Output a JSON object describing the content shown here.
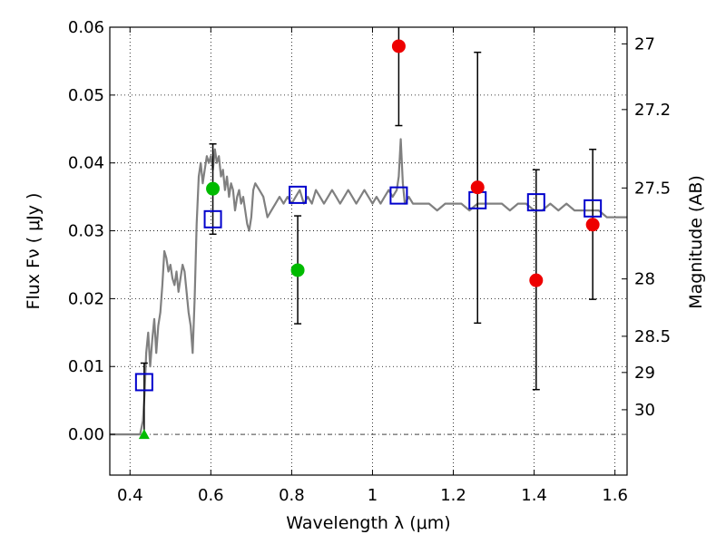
{
  "chart_data": {
    "type": "scatter",
    "title": "",
    "xlabel": "Wavelength  λ (μm)",
    "ylabel": "Flux  Fν  ( μJy )",
    "ylabel_right": "Magnitude (AB)",
    "xlim": [
      0.35,
      1.63
    ],
    "ylim": [
      -0.006,
      0.06
    ],
    "grid": true,
    "x_ticks": [
      0.4,
      0.6,
      0.8,
      1.0,
      1.2,
      1.4,
      1.6
    ],
    "x_tick_labels": [
      "0.4",
      "0.6",
      "0.8",
      "1",
      "1.2",
      "1.4",
      "1.6"
    ],
    "y_ticks": [
      0.0,
      0.01,
      0.02,
      0.03,
      0.04,
      0.05,
      0.06
    ],
    "y_tick_labels": [
      "0.00",
      "0.01",
      "0.02",
      "0.03",
      "0.04",
      "0.05",
      "0.06"
    ],
    "mag_ticks": [
      27,
      27.2,
      27.5,
      28,
      28.5,
      29,
      30
    ],
    "mag_tick_labels": [
      "27",
      "27.2",
      "27.5",
      "28",
      "28.5",
      "29",
      "30"
    ],
    "colors": {
      "model": "#808080",
      "model_photometry": "#0000cc",
      "detection_green": "#00bb00",
      "detection_red": "#ee0000",
      "errorbar": "#000000",
      "zero_line": "#444444"
    },
    "series": [
      {
        "name": "model SED",
        "style": "line",
        "x": [
          0.35,
          0.425,
          0.432,
          0.436,
          0.44,
          0.445,
          0.45,
          0.455,
          0.46,
          0.465,
          0.47,
          0.475,
          0.48,
          0.485,
          0.49,
          0.495,
          0.5,
          0.505,
          0.51,
          0.515,
          0.52,
          0.525,
          0.53,
          0.535,
          0.54,
          0.545,
          0.55,
          0.555,
          0.56,
          0.565,
          0.57,
          0.575,
          0.58,
          0.585,
          0.59,
          0.595,
          0.6,
          0.605,
          0.61,
          0.615,
          0.62,
          0.625,
          0.63,
          0.635,
          0.64,
          0.645,
          0.65,
          0.655,
          0.66,
          0.665,
          0.67,
          0.675,
          0.68,
          0.685,
          0.69,
          0.695,
          0.7,
          0.705,
          0.71,
          0.72,
          0.73,
          0.74,
          0.75,
          0.76,
          0.77,
          0.78,
          0.79,
          0.8,
          0.81,
          0.82,
          0.83,
          0.84,
          0.85,
          0.86,
          0.87,
          0.88,
          0.89,
          0.9,
          0.91,
          0.92,
          0.93,
          0.94,
          0.95,
          0.96,
          0.97,
          0.98,
          0.99,
          1.0,
          1.01,
          1.02,
          1.03,
          1.04,
          1.05,
          1.06,
          1.065,
          1.07,
          1.075,
          1.08,
          1.09,
          1.1,
          1.12,
          1.14,
          1.16,
          1.18,
          1.2,
          1.22,
          1.24,
          1.26,
          1.28,
          1.3,
          1.32,
          1.34,
          1.36,
          1.38,
          1.4,
          1.42,
          1.44,
          1.46,
          1.48,
          1.5,
          1.52,
          1.54,
          1.56,
          1.58,
          1.6,
          1.63
        ],
        "y": [
          0.0,
          0.0,
          0.002,
          0.006,
          0.012,
          0.015,
          0.01,
          0.014,
          0.017,
          0.012,
          0.016,
          0.018,
          0.022,
          0.027,
          0.026,
          0.024,
          0.025,
          0.023,
          0.022,
          0.024,
          0.021,
          0.023,
          0.025,
          0.024,
          0.021,
          0.018,
          0.016,
          0.012,
          0.02,
          0.031,
          0.038,
          0.04,
          0.037,
          0.039,
          0.041,
          0.04,
          0.041,
          0.039,
          0.042,
          0.04,
          0.041,
          0.038,
          0.039,
          0.036,
          0.038,
          0.035,
          0.037,
          0.036,
          0.033,
          0.035,
          0.036,
          0.034,
          0.035,
          0.033,
          0.031,
          0.03,
          0.032,
          0.036,
          0.037,
          0.036,
          0.035,
          0.032,
          0.033,
          0.034,
          0.035,
          0.034,
          0.035,
          0.034,
          0.035,
          0.036,
          0.034,
          0.035,
          0.034,
          0.036,
          0.035,
          0.034,
          0.035,
          0.036,
          0.035,
          0.034,
          0.035,
          0.036,
          0.035,
          0.034,
          0.035,
          0.036,
          0.035,
          0.034,
          0.035,
          0.034,
          0.035,
          0.036,
          0.035,
          0.036,
          0.038,
          0.0435,
          0.037,
          0.034,
          0.035,
          0.034,
          0.034,
          0.034,
          0.033,
          0.034,
          0.034,
          0.034,
          0.033,
          0.034,
          0.034,
          0.034,
          0.034,
          0.033,
          0.034,
          0.034,
          0.033,
          0.033,
          0.034,
          0.033,
          0.034,
          0.033,
          0.033,
          0.033,
          0.033,
          0.032,
          0.032,
          0.032
        ]
      },
      {
        "name": "model photometry",
        "style": "open-square",
        "x": [
          0.435,
          0.605,
          0.815,
          1.065,
          1.26,
          1.405,
          1.545
        ],
        "y": [
          0.0077,
          0.0317,
          0.0353,
          0.0352,
          0.0345,
          0.0342,
          0.0333
        ]
      },
      {
        "name": "green points",
        "style": "filled-circle",
        "x": [
          0.605,
          0.815
        ],
        "y": [
          0.0362,
          0.0242
        ]
      },
      {
        "name": "red points",
        "style": "filled-circle",
        "x": [
          1.065,
          1.26,
          1.405,
          1.545
        ],
        "y": [
          0.0572,
          0.0364,
          0.0227,
          0.0309
        ]
      },
      {
        "name": "upper limit",
        "style": "triangle",
        "x": [
          0.435
        ],
        "y": [
          0.0
        ]
      }
    ],
    "errorbars": [
      {
        "x": 0.435,
        "low": -0.0005,
        "high": 0.0105
      },
      {
        "x": 0.605,
        "low": 0.0295,
        "high": 0.0428
      },
      {
        "x": 0.815,
        "low": 0.0163,
        "high": 0.0322
      },
      {
        "x": 1.065,
        "low": 0.0455,
        "high": 0.0605
      },
      {
        "x": 1.26,
        "low": 0.0164,
        "high": 0.0563
      },
      {
        "x": 1.405,
        "low": 0.0066,
        "high": 0.039
      },
      {
        "x": 1.545,
        "low": 0.0199,
        "high": 0.042
      }
    ]
  }
}
